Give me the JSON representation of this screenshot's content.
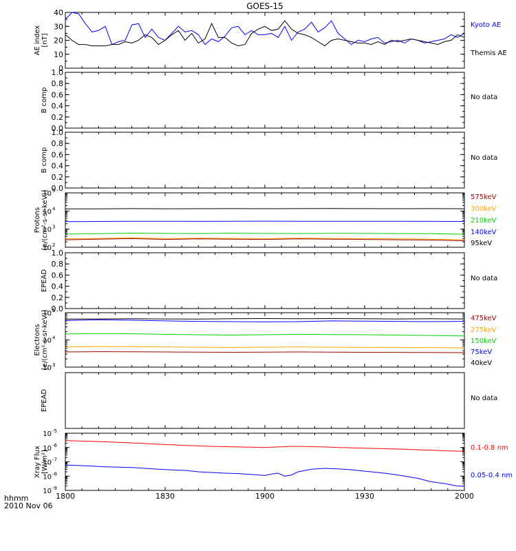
{
  "title": "GOES-15",
  "time_axis": {
    "ticks": [
      "1800",
      "1830",
      "1900",
      "1930",
      "2000"
    ],
    "label_line1": "hhmm",
    "label_line2": "2010 Nov 06"
  },
  "colors": {
    "black": "#000000",
    "blue": "#0000ff",
    "red": "#ff0000",
    "orange": "#ffa500",
    "green": "#00d000",
    "darkred": "#990000"
  },
  "chart_data": [
    {
      "type": "line",
      "id": "ae",
      "ylabel_lines": [
        "AE index",
        "[nT]"
      ],
      "ylim": [
        0,
        40
      ],
      "yscale": "linear",
      "yticks": [
        "0",
        "10",
        "20",
        "30",
        "40"
      ],
      "x": [
        0,
        2,
        4,
        6,
        8,
        10,
        12,
        14,
        16,
        18,
        20,
        22,
        24,
        26,
        28,
        30,
        32,
        34,
        36,
        38,
        40,
        42,
        44,
        46,
        48,
        50,
        52,
        54,
        56,
        58,
        60,
        62,
        64,
        66,
        68,
        70,
        72,
        74,
        76,
        78,
        80,
        82,
        84,
        86,
        88,
        90,
        92,
        94,
        96,
        98,
        100,
        102,
        104,
        106,
        108,
        110,
        112,
        114,
        116,
        118,
        120
      ],
      "series": [
        {
          "name": "Kyoto AE",
          "color": "#0000ff",
          "values": [
            35,
            40,
            39,
            32,
            26,
            27,
            30,
            17,
            19,
            20,
            31,
            32,
            22,
            28,
            22,
            20,
            25,
            30,
            26,
            27,
            24,
            17,
            21,
            19,
            23,
            29,
            30,
            24,
            27,
            24,
            24,
            25,
            22,
            30,
            20,
            26,
            28,
            33,
            26,
            29,
            34,
            25,
            21,
            17,
            20,
            19,
            21,
            22,
            18,
            19,
            20,
            18,
            21,
            20,
            18,
            19,
            20,
            21,
            24,
            22,
            25
          ]
        },
        {
          "name": "Themis AE",
          "color": "#000000",
          "values": [
            24,
            20,
            17,
            17,
            16,
            16,
            16,
            17,
            17,
            19,
            18,
            20,
            24,
            22,
            17,
            20,
            24,
            27,
            20,
            25,
            18,
            21,
            32,
            22,
            22,
            18,
            16,
            17,
            25,
            28,
            30,
            27,
            28,
            34,
            28,
            25,
            24,
            22,
            19,
            16,
            20,
            21,
            20,
            19,
            18,
            18,
            17,
            19,
            17,
            20,
            19,
            20,
            21,
            20,
            19,
            18,
            17,
            19,
            20,
            24,
            22
          ]
        }
      ],
      "legend": [
        "Kyoto AE",
        "Themis AE"
      ]
    },
    {
      "type": "line",
      "id": "bcomp1",
      "ylabel_lines": [
        "B comp"
      ],
      "ylim": [
        0,
        1
      ],
      "yscale": "linear",
      "yticks": [
        "0.0",
        "0.2",
        "0.4",
        "0.6",
        "0.8",
        "1.0"
      ],
      "series": [],
      "note": "No data"
    },
    {
      "type": "line",
      "id": "bcomp2",
      "ylabel_lines": [
        "B comp"
      ],
      "ylim": [
        0,
        1
      ],
      "yscale": "linear",
      "yticks": [
        "0.0",
        "0.2",
        "0.4",
        "0.6",
        "0.8",
        "1.0"
      ],
      "series": [],
      "note": "No data"
    },
    {
      "type": "line",
      "id": "protons",
      "ylabel_lines": [
        "Protons",
        "[p/(cm²-s-sr-keV)]"
      ],
      "ylim": [
        100,
        100000
      ],
      "yscale": "log",
      "ytick_exponents": [
        "2",
        "3",
        "4",
        "5"
      ],
      "x": [
        0,
        10,
        20,
        30,
        40,
        50,
        60,
        70,
        80,
        90,
        100,
        110,
        120
      ],
      "series": [
        {
          "name": "95keV",
          "color": "#000000",
          "values": [
            13000,
            13200,
            13500,
            13300,
            13400,
            13500,
            13400,
            13500,
            13600,
            13500,
            13400,
            13500,
            13300
          ]
        },
        {
          "name": "140keV",
          "color": "#0000ff",
          "values": [
            2600,
            2650,
            2700,
            2720,
            2680,
            2700,
            2750,
            2720,
            2700,
            2720,
            2700,
            2680,
            2650
          ]
        },
        {
          "name": "210keV",
          "color": "#00d000",
          "values": [
            530,
            560,
            600,
            580,
            570,
            600,
            580,
            570,
            590,
            580,
            570,
            560,
            520
          ]
        },
        {
          "name": "300keV",
          "color": "#ffa500",
          "values": [
            290,
            310,
            330,
            300,
            320,
            310,
            300,
            320,
            310,
            300,
            290,
            280,
            260
          ]
        },
        {
          "name": "575keV",
          "color": "#990000",
          "values": [
            260,
            280,
            300,
            270,
            290,
            280,
            270,
            290,
            280,
            270,
            260,
            250,
            230
          ]
        }
      ],
      "legend": [
        "575keV",
        "300keV",
        "210keV",
        "140keV",
        "95keV"
      ]
    },
    {
      "type": "line",
      "id": "epead1",
      "ylabel_lines": [
        "EPEAD"
      ],
      "ylim": [
        0,
        1
      ],
      "yscale": "linear",
      "yticks": [
        "0.0",
        "0.2",
        "0.4",
        "0.6",
        "0.8",
        "1.0"
      ],
      "series": [],
      "note": "No data"
    },
    {
      "type": "line",
      "id": "electrons",
      "ylabel_lines": [
        "Electrons",
        "[e/(cm²-s-sr-keV)]"
      ],
      "ylim": [
        1000,
        100000
      ],
      "yscale": "log",
      "ytick_exponents": [
        "3",
        "4",
        "5"
      ],
      "x": [
        0,
        10,
        20,
        30,
        40,
        50,
        60,
        70,
        80,
        90,
        100,
        110,
        120
      ],
      "series": [
        {
          "name": "40keV",
          "color": "#000000",
          "values": [
            58000,
            59000,
            60000,
            59000,
            58000,
            60000,
            61000,
            60000,
            61000,
            60000,
            59000,
            60000,
            59000
          ]
        },
        {
          "name": "75keV",
          "color": "#0000ff",
          "values": [
            52000,
            55000,
            53000,
            50000,
            48000,
            47000,
            46000,
            47000,
            50000,
            49000,
            48000,
            47000,
            48000
          ]
        },
        {
          "name": "150keV",
          "color": "#00d000",
          "values": [
            16500,
            17000,
            16800,
            16000,
            15500,
            15000,
            15500,
            16000,
            15800,
            15500,
            15000,
            14500,
            14000
          ]
        },
        {
          "name": "275keV",
          "color": "#ffa500",
          "values": [
            5500,
            5700,
            5600,
            5500,
            5400,
            5300,
            5400,
            5500,
            5400,
            5300,
            5300,
            5200,
            5100
          ]
        },
        {
          "name": "475keV",
          "color": "#990000",
          "values": [
            3600,
            3700,
            3650,
            3600,
            3550,
            3500,
            3550,
            3600,
            3550,
            3500,
            3480,
            3450,
            3400
          ]
        }
      ],
      "legend": [
        "475keV",
        "275keV",
        "150keV",
        "75keV",
        "40keV"
      ]
    },
    {
      "type": "line",
      "id": "epead2",
      "ylabel_lines": [
        "EPEAD"
      ],
      "ylim": [
        0,
        1
      ],
      "yscale": "linear",
      "yticks": [],
      "series": [],
      "note": "No data"
    },
    {
      "type": "line",
      "id": "xray",
      "ylabel_lines": [
        "Xray Flux",
        "[W/m²]"
      ],
      "ylim": [
        1e-09,
        1e-05
      ],
      "yscale": "log",
      "ytick_exponents": [
        "-9",
        "-8",
        "-7",
        "-6",
        "-5"
      ],
      "x": [
        0,
        4,
        8,
        12,
        16,
        20,
        24,
        28,
        32,
        36,
        40,
        44,
        48,
        52,
        56,
        60,
        62,
        64,
        66,
        68,
        70,
        74,
        78,
        82,
        86,
        90,
        94,
        98,
        102,
        106,
        110,
        114,
        118,
        120
      ],
      "series": [
        {
          "name": "0.1-0.8 nm",
          "color": "#ff0000",
          "values": [
            3e-06,
            2.9e-06,
            2.7e-06,
            2.5e-06,
            2.3e-06,
            2.1e-06,
            1.9e-06,
            1.7e-06,
            1.55e-06,
            1.4e-06,
            1.3e-06,
            1.2e-06,
            1.15e-06,
            1.1e-06,
            1.05e-06,
            1e-06,
            1.05e-06,
            1.1e-06,
            1.15e-06,
            1.2e-06,
            1.2e-06,
            1.15e-06,
            1.1e-06,
            1e-06,
            9.5e-07,
            9e-07,
            8.5e-07,
            8e-07,
            7.5e-07,
            7e-07,
            6.5e-07,
            6e-07,
            5.5e-07,
            5.5e-07
          ]
        },
        {
          "name": "0.05-0.4 nm",
          "color": "#0000ff",
          "values": [
            6e-08,
            5.5e-08,
            5e-08,
            4.5e-08,
            4.2e-08,
            4e-08,
            3.5e-08,
            3e-08,
            2.7e-08,
            2.5e-08,
            2e-08,
            1.8e-08,
            1.6e-08,
            1.5e-08,
            1.3e-08,
            1.1e-08,
            1.4e-08,
            1.6e-08,
            1e-08,
            1.2e-08,
            2e-08,
            3e-08,
            3.5e-08,
            3.2e-08,
            2.8e-08,
            2.2e-08,
            1.8e-08,
            1.4e-08,
            1e-08,
            7e-09,
            4e-09,
            3e-09,
            2e-09,
            2e-09
          ]
        }
      ],
      "legend": [
        "0.1-0.8 nm",
        "0.05-0.4 nm"
      ]
    }
  ]
}
